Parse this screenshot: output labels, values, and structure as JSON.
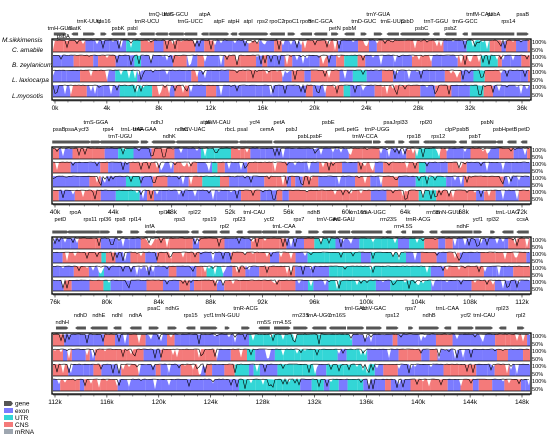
{
  "colors": {
    "gene": "#555555",
    "exon": "#7b7bff",
    "utr": "#33d6d6",
    "cns": "#f47a7a",
    "mrna": "#9ea6b0",
    "frame": "#000000",
    "trace": "#000000"
  },
  "species": [
    "M.sikkimensis",
    "C. amabile",
    "B. zeylanicum",
    "L. laxiocarpa",
    "L.myosotis"
  ],
  "percent_labels": [
    "100%",
    "50%"
  ],
  "legend": [
    {
      "key": "gene",
      "label": "gene"
    },
    {
      "key": "exon",
      "label": "exon"
    },
    {
      "key": "utr",
      "label": "UTR"
    },
    {
      "key": "cns",
      "label": "CNS"
    },
    {
      "key": "mrna",
      "label": "mRNA"
    }
  ],
  "panels": [
    {
      "axis": [
        "0k",
        "4k",
        "8k",
        "12k",
        "16k",
        "20k",
        "24k",
        "28k",
        "32k",
        "36k"
      ],
      "genes": [
        {
          "name": "trnH-GUG",
          "lane": 0
        },
        {
          "name": "matK",
          "lane": 0
        },
        {
          "name": "trnK-UUU",
          "lane": 1
        },
        {
          "name": "rps16",
          "lane": 1
        },
        {
          "name": "psbK",
          "lane": 0
        },
        {
          "name": "psbI",
          "lane": 0
        },
        {
          "name": "trnR-UCU",
          "lane": 1
        },
        {
          "name": "trnQ-UUG",
          "lane": 2
        },
        {
          "name": "trnS-GCU",
          "lane": 2
        },
        {
          "name": "trnG-UCC",
          "lane": 1
        },
        {
          "name": "atpA",
          "lane": 2
        },
        {
          "name": "atpF",
          "lane": 1
        },
        {
          "name": "atpH",
          "lane": 1
        },
        {
          "name": "atpI",
          "lane": 1
        },
        {
          "name": "rps2",
          "lane": 1
        },
        {
          "name": "rpoC2",
          "lane": 1
        },
        {
          "name": "rpoC1",
          "lane": 1
        },
        {
          "name": "rpoB",
          "lane": 1
        },
        {
          "name": "trnC-GCA",
          "lane": 1
        },
        {
          "name": "petN",
          "lane": 0
        },
        {
          "name": "psbM",
          "lane": 0
        },
        {
          "name": "trnD-GUC",
          "lane": 1
        },
        {
          "name": "trnY-GUA",
          "lane": 2
        },
        {
          "name": "trnE-UUC",
          "lane": 1
        },
        {
          "name": "psbD",
          "lane": 1
        },
        {
          "name": "psbC",
          "lane": 0
        },
        {
          "name": "trnT-GGU",
          "lane": 1
        },
        {
          "name": "psbZ",
          "lane": 0
        },
        {
          "name": "trnG-GCC",
          "lane": 1
        },
        {
          "name": "trnfM-CAU",
          "lane": 2
        },
        {
          "name": "psbA",
          "lane": 3
        },
        {
          "name": "rps14",
          "lane": 1
        },
        {
          "name": "psaB",
          "lane": 2
        }
      ],
      "row_labels": [
        "psbA"
      ]
    },
    {
      "axis": [
        "40k",
        "44k",
        "48k",
        "52k",
        "56k",
        "60k",
        "64k",
        "68k",
        "72k"
      ],
      "genes": [
        {
          "name": "psaB",
          "lane": 1
        },
        {
          "name": "psaA",
          "lane": 1
        },
        {
          "name": "ycf3",
          "lane": 1
        },
        {
          "name": "trnS-GGA",
          "lane": 2
        },
        {
          "name": "rps4",
          "lane": 1
        },
        {
          "name": "trnT-UGU",
          "lane": 0
        },
        {
          "name": "trnL-UAA",
          "lane": 1
        },
        {
          "name": "trnF-GAA",
          "lane": 1
        },
        {
          "name": "ndhJ",
          "lane": 2
        },
        {
          "name": "ndhK",
          "lane": 0
        },
        {
          "name": "ndhC",
          "lane": 1
        },
        {
          "name": "trnV-UAC",
          "lane": 1
        },
        {
          "name": "atpE",
          "lane": 2
        },
        {
          "name": "trnM-CAU",
          "lane": 2
        },
        {
          "name": "rbcL",
          "lane": 1
        },
        {
          "name": "psaI",
          "lane": 1
        },
        {
          "name": "ycf4",
          "lane": 2
        },
        {
          "name": "cemA",
          "lane": 1
        },
        {
          "name": "petA",
          "lane": 2
        },
        {
          "name": "psbJ",
          "lane": 1
        },
        {
          "name": "psbL",
          "lane": 0
        },
        {
          "name": "psbF",
          "lane": 0
        },
        {
          "name": "psbE",
          "lane": 2
        },
        {
          "name": "petL",
          "lane": 1
        },
        {
          "name": "petG",
          "lane": 1
        },
        {
          "name": "trnW-CCA",
          "lane": 0
        },
        {
          "name": "trnP-UGG",
          "lane": 1
        },
        {
          "name": "psaJ",
          "lane": 2
        },
        {
          "name": "rpl33",
          "lane": 2
        },
        {
          "name": "rps18",
          "lane": 0
        },
        {
          "name": "rpl20",
          "lane": 2
        },
        {
          "name": "rps12",
          "lane": 0
        },
        {
          "name": "clpP",
          "lane": 1
        },
        {
          "name": "psbB",
          "lane": 1
        },
        {
          "name": "psbT",
          "lane": 0
        },
        {
          "name": "psbN",
          "lane": 2
        },
        {
          "name": "psbH",
          "lane": 1
        },
        {
          "name": "petB",
          "lane": 1
        },
        {
          "name": "petD",
          "lane": 1
        }
      ]
    },
    {
      "axis": [
        "76k",
        "80k",
        "84k",
        "88k",
        "92k",
        "96k",
        "100k",
        "104k",
        "108k",
        "112k"
      ],
      "genes": [
        {
          "name": "petD",
          "lane": 1
        },
        {
          "name": "rpoA",
          "lane": 2
        },
        {
          "name": "rps11",
          "lane": 1
        },
        {
          "name": "rpl36",
          "lane": 1
        },
        {
          "name": "rps8",
          "lane": 1
        },
        {
          "name": "rpl14",
          "lane": 1
        },
        {
          "name": "infA",
          "lane": 0
        },
        {
          "name": "rpl16",
          "lane": 2
        },
        {
          "name": "rps3",
          "lane": 1
        },
        {
          "name": "rpl22",
          "lane": 2
        },
        {
          "name": "rps19",
          "lane": 1
        },
        {
          "name": "rpl2",
          "lane": 0
        },
        {
          "name": "rpl23",
          "lane": 1
        },
        {
          "name": "trnI-CAU",
          "lane": 2
        },
        {
          "name": "ycf2",
          "lane": 1
        },
        {
          "name": "trnL-CAA",
          "lane": 0
        },
        {
          "name": "rps7",
          "lane": 1
        },
        {
          "name": "ndhB",
          "lane": 2
        },
        {
          "name": "trnV-GAC",
          "lane": 1
        },
        {
          "name": "trnI-GAU",
          "lane": 1
        },
        {
          "name": "rrn16S",
          "lane": 2
        },
        {
          "name": "trnA-UGC",
          "lane": 2
        },
        {
          "name": "rrn23S",
          "lane": 1
        },
        {
          "name": "rrn4.5S",
          "lane": 0
        },
        {
          "name": "trnR-ACG",
          "lane": 1
        },
        {
          "name": "rrn5S",
          "lane": 2
        },
        {
          "name": "trnN-GUU",
          "lane": 2
        },
        {
          "name": "ndhF",
          "lane": 0
        },
        {
          "name": "ycf1",
          "lane": 1
        },
        {
          "name": "rpl32",
          "lane": 1
        },
        {
          "name": "trnL-UAG",
          "lane": 2
        },
        {
          "name": "ccsA",
          "lane": 1
        }
      ]
    },
    {
      "axis": [
        "112k",
        "116k",
        "120k",
        "124k",
        "128k",
        "132k",
        "136k",
        "140k",
        "144k",
        "148k"
      ],
      "genes": [
        {
          "name": "ndhH",
          "lane": 0
        },
        {
          "name": "ndhD",
          "lane": 1
        },
        {
          "name": "ndhE",
          "lane": 1
        },
        {
          "name": "ndhI",
          "lane": 1
        },
        {
          "name": "ndhA",
          "lane": 1
        },
        {
          "name": "psaC",
          "lane": 2
        },
        {
          "name": "ndhG",
          "lane": 2
        },
        {
          "name": "rps15",
          "lane": 1
        },
        {
          "name": "ycf1",
          "lane": 1
        },
        {
          "name": "trnN-GUU",
          "lane": 1
        },
        {
          "name": "trnR-ACG",
          "lane": 2
        },
        {
          "name": "rrn5S",
          "lane": 0
        },
        {
          "name": "rrn4.5S",
          "lane": 0
        },
        {
          "name": "rrn23S",
          "lane": 1
        },
        {
          "name": "trnA-UGC",
          "lane": 1
        },
        {
          "name": "rrn16S",
          "lane": 1
        },
        {
          "name": "trnI-GAU",
          "lane": 2
        },
        {
          "name": "trnV-GAC",
          "lane": 2
        },
        {
          "name": "rps12",
          "lane": 1
        },
        {
          "name": "rps7",
          "lane": 2
        },
        {
          "name": "ndhB",
          "lane": 1
        },
        {
          "name": "trnL-CAA",
          "lane": 2
        },
        {
          "name": "ycf2",
          "lane": 1
        },
        {
          "name": "trnI-CAU",
          "lane": 1
        },
        {
          "name": "rpl23",
          "lane": 2
        },
        {
          "name": "rpl2",
          "lane": 1
        }
      ]
    }
  ]
}
